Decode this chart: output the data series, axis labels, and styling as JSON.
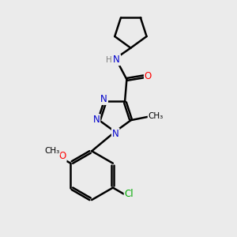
{
  "bg_color": "#ebebeb",
  "atom_colors": {
    "C": "#000000",
    "N": "#0000cc",
    "O": "#ff0000",
    "Cl": "#00aa00",
    "H": "#808080"
  },
  "bond_color": "#000000",
  "bond_width": 1.8,
  "font_size": 8.5
}
